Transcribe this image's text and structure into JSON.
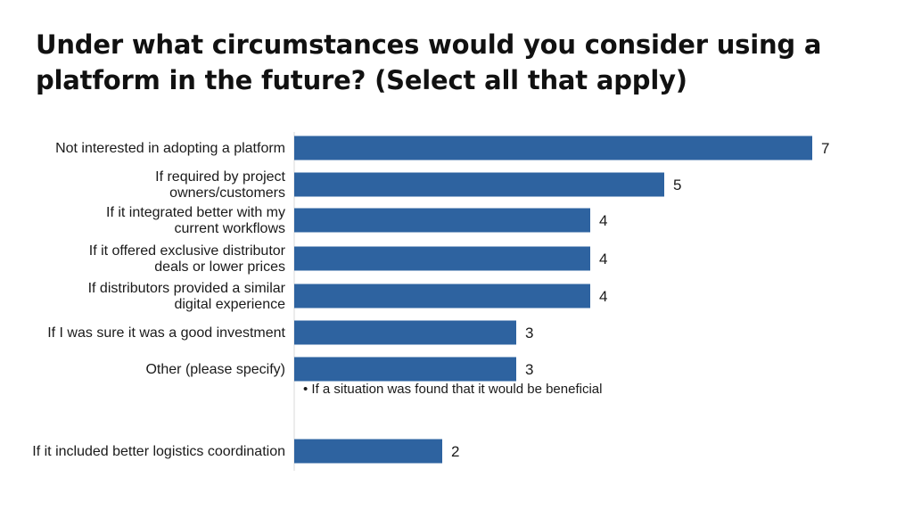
{
  "chart_data": {
    "type": "bar",
    "orientation": "horizontal",
    "title": "Under what circumstances would you consider using a platform in the future? (Select all that apply)",
    "categories": [
      [
        "Not interested in adopting a platform"
      ],
      [
        "If required by project",
        "owners/customers"
      ],
      [
        "If it integrated better with my",
        "current workflows"
      ],
      [
        "If it offered exclusive distributor",
        "deals or lower prices"
      ],
      [
        "If distributors provided a similar",
        "digital experience"
      ],
      [
        "If I was sure it was a good investment"
      ],
      [
        "Other (please specify)"
      ],
      [
        "If it included better logistics coordination"
      ]
    ],
    "values": [
      7,
      5,
      4,
      4,
      4,
      3,
      3,
      2
    ],
    "annotations": [
      {
        "category_index": 6,
        "text": "• If a situation was found that it would be beneficial"
      }
    ],
    "bar_color": "#2e63a0",
    "xlim": [
      0,
      7
    ],
    "grid": false,
    "legend": "none"
  }
}
